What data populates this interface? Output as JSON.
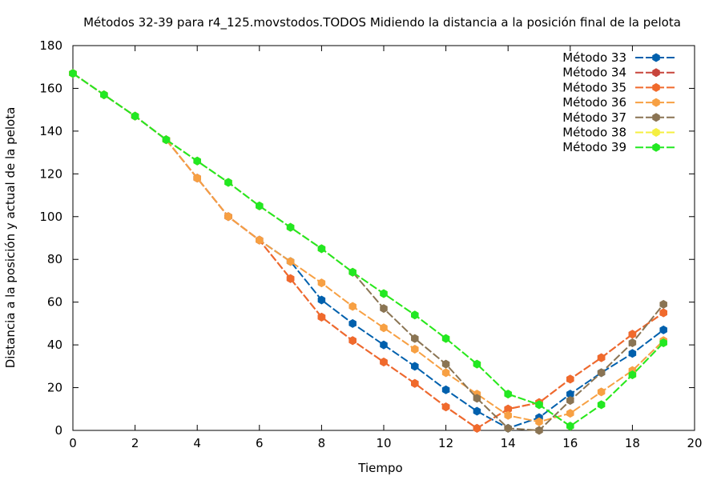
{
  "chart_data": {
    "type": "line",
    "title": "Métodos 32-39 para r4_125.movstodos.TODOS Midiendo la distancia a la posición final de la pelota",
    "xlabel": "Tiempo",
    "ylabel": "Distancia a la posición y actual de la pelota",
    "xlim": [
      0,
      20
    ],
    "ylim": [
      0,
      180
    ],
    "xticks": [
      0,
      2,
      4,
      6,
      8,
      10,
      12,
      14,
      16,
      18,
      20
    ],
    "yticks": [
      0,
      20,
      40,
      60,
      80,
      100,
      120,
      140,
      160,
      180
    ],
    "grid": false,
    "legend_position": "top-right",
    "x": [
      0,
      1,
      2,
      3,
      4,
      5,
      6,
      7,
      8,
      9,
      10,
      11,
      12,
      13,
      14,
      15,
      16,
      17,
      18,
      19
    ],
    "series": [
      {
        "name": "Método 33",
        "color": "#0060ad",
        "values": [
          167,
          157,
          147,
          136,
          118,
          100,
          89,
          79,
          61,
          50,
          40,
          30,
          19,
          9,
          1,
          6,
          17,
          27,
          36,
          47
        ]
      },
      {
        "name": "Método 34",
        "color": "#c8453c",
        "values": [
          167,
          157,
          147,
          136,
          118,
          100,
          89,
          71,
          53,
          42,
          32,
          22,
          11,
          1,
          10,
          13,
          24,
          34,
          45,
          55
        ]
      },
      {
        "name": "Método 35",
        "color": "#f06a2c",
        "values": [
          167,
          157,
          147,
          136,
          118,
          100,
          89,
          71,
          53,
          42,
          32,
          22,
          11,
          1,
          10,
          13,
          24,
          34,
          45,
          55
        ]
      },
      {
        "name": "Método 36",
        "color": "#f7a043",
        "values": [
          167,
          157,
          147,
          136,
          118,
          100,
          89,
          79,
          69,
          58,
          48,
          38,
          27,
          17,
          7,
          4,
          8,
          18,
          28,
          42
        ]
      },
      {
        "name": "Método 37",
        "color": "#8a7453",
        "values": [
          167,
          157,
          147,
          136,
          126,
          116,
          105,
          95,
          85,
          74,
          57,
          43,
          31,
          15,
          1,
          0,
          14,
          27,
          41,
          59
        ]
      },
      {
        "name": "Método 38",
        "color": "#f5ef40",
        "values": [
          167,
          157,
          147,
          136,
          126,
          116,
          105,
          95,
          85,
          74,
          64,
          54,
          43,
          31,
          17,
          12,
          2,
          12,
          26,
          41
        ]
      },
      {
        "name": "Método 39",
        "color": "#22e822",
        "values": [
          167,
          157,
          147,
          136,
          126,
          116,
          105,
          95,
          85,
          74,
          64,
          54,
          43,
          31,
          17,
          12,
          2,
          12,
          26,
          41
        ]
      }
    ]
  }
}
